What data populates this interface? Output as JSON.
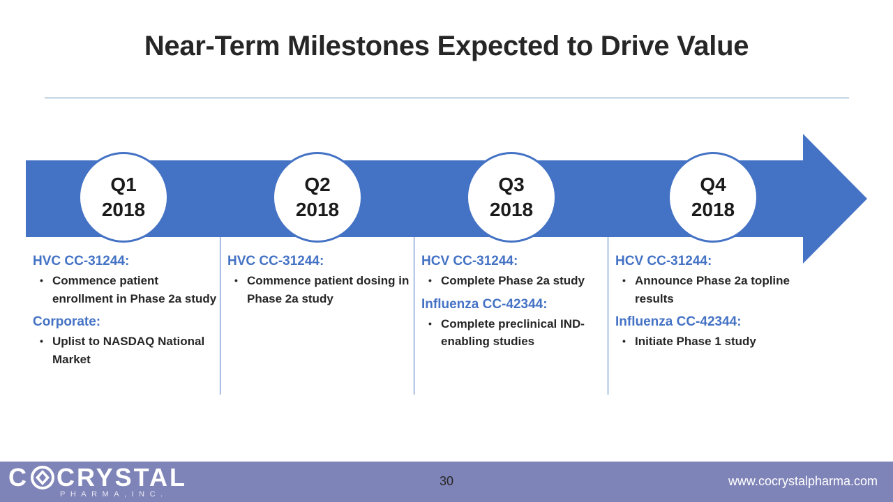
{
  "title": "Near-Term Milestones Expected to Drive Value",
  "colors": {
    "arrow": "#4472c4",
    "heading": "#4472c4",
    "footer": "#7f84b8"
  },
  "quarters": [
    {
      "q": "Q1",
      "year": "2018"
    },
    {
      "q": "Q2",
      "year": "2018"
    },
    {
      "q": "Q3",
      "year": "2018"
    },
    {
      "q": "Q4",
      "year": "2018"
    }
  ],
  "columns": [
    {
      "groups": [
        {
          "heading": "HVC CC-31244:",
          "items": [
            "Commence patient enrollment in Phase 2a study"
          ]
        },
        {
          "heading": "Corporate:",
          "items": [
            "Uplist to NASDAQ National Market"
          ]
        }
      ]
    },
    {
      "groups": [
        {
          "heading": "HVC CC-31244:",
          "items": [
            "Commence patient dosing in Phase 2a study"
          ]
        }
      ]
    },
    {
      "groups": [
        {
          "heading": "HCV CC-31244:",
          "items": [
            "Complete Phase 2a study"
          ]
        },
        {
          "heading": "Influenza CC-42344:",
          "items": [
            "Complete preclinical IND-enabling studies"
          ]
        }
      ]
    },
    {
      "groups": [
        {
          "heading": "HCV CC-31244:",
          "items": [
            "Announce Phase 2a topline results"
          ]
        },
        {
          "heading": "Influenza CC-42344:",
          "items": [
            "Initiate Phase 1 study"
          ]
        }
      ]
    }
  ],
  "footer": {
    "logo_left": "C",
    "logo_right": "CRYSTAL",
    "logo_sub": "PHARMA,INC.",
    "page_number": "30",
    "website": "www.cocrystalpharma.com"
  }
}
